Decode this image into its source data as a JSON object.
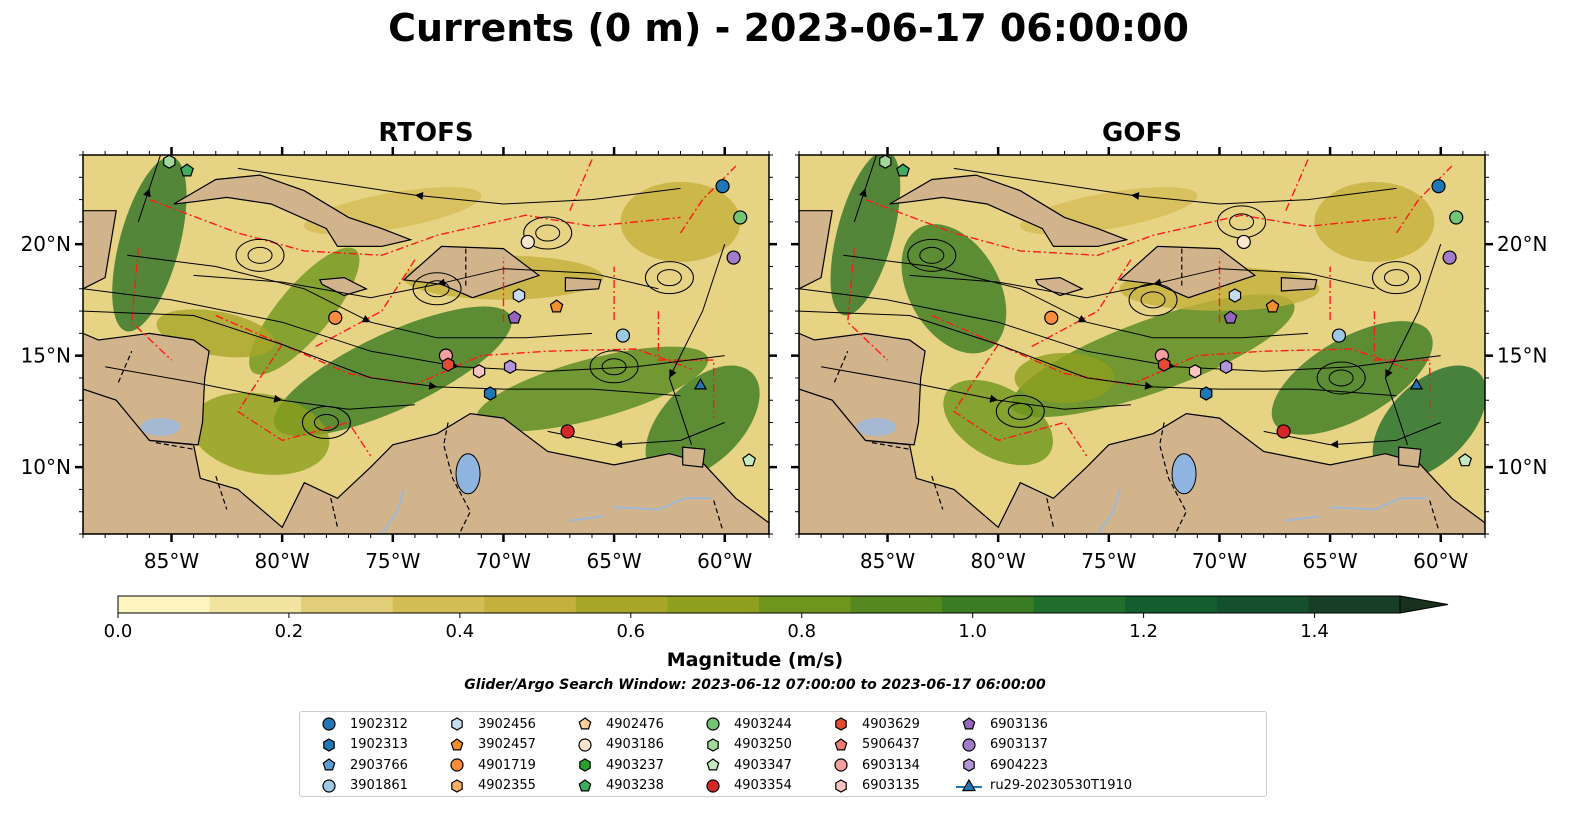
{
  "title": "Currents (0 m) - 2023-06-17 06:00:00",
  "panels": [
    {
      "title": "RTOFS"
    },
    {
      "title": "GOFS"
    }
  ],
  "axes": {
    "lon_ticks": [
      "85°W",
      "80°W",
      "75°W",
      "70°W",
      "65°W",
      "60°W"
    ],
    "lat_ticks": [
      "20°N",
      "15°N",
      "10°N"
    ],
    "lon_range": [
      -89,
      -58
    ],
    "lat_range": [
      7,
      24
    ]
  },
  "colorbar": {
    "label": "Magnitude (m/s)",
    "ticks": [
      "0.0",
      "0.2",
      "0.4",
      "0.6",
      "0.8",
      "1.0",
      "1.2",
      "1.4"
    ],
    "range": [
      0,
      1.5
    ],
    "extend": "max",
    "colors": [
      "#fdf5c0",
      "#f3e3a0",
      "#e2ce78",
      "#d4bd55",
      "#c4b03c",
      "#a8a628",
      "#8fa01e",
      "#6e961c",
      "#54891f",
      "#3a7c22",
      "#1f6e2c",
      "#125e2f",
      "#14502e",
      "#163f26",
      "#18301e"
    ]
  },
  "search_window": "Glider/Argo Search Window: 2023-06-12 07:00:00 to 2023-06-17 06:00:00",
  "legend": [
    {
      "label": "1902312",
      "marker": "circle",
      "color": "#1f77b4"
    },
    {
      "label": "1902313",
      "marker": "hexagon",
      "color": "#1f77b4"
    },
    {
      "label": "2903766",
      "marker": "pentagon",
      "color": "#5b9bd5"
    },
    {
      "label": "3901861",
      "marker": "circle",
      "color": "#9ecae1"
    },
    {
      "label": "3902456",
      "marker": "hexagon",
      "color": "#c6dbef"
    },
    {
      "label": "3902457",
      "marker": "pentagon",
      "color": "#f28e2b"
    },
    {
      "label": "4901719",
      "marker": "circle",
      "color": "#fd8d3c"
    },
    {
      "label": "4902355",
      "marker": "hexagon",
      "color": "#fdae6b"
    },
    {
      "label": "4902476",
      "marker": "pentagon",
      "color": "#fdd0a2"
    },
    {
      "label": "4903186",
      "marker": "circle",
      "color": "#fee6ce"
    },
    {
      "label": "4903237",
      "marker": "hexagon",
      "color": "#2ca02c"
    },
    {
      "label": "4903238",
      "marker": "pentagon",
      "color": "#41ab5d"
    },
    {
      "label": "4903244",
      "marker": "circle",
      "color": "#74c476"
    },
    {
      "label": "4903250",
      "marker": "hexagon",
      "color": "#a1d99b"
    },
    {
      "label": "4903347",
      "marker": "pentagon",
      "color": "#c7e9c0"
    },
    {
      "label": "4903354",
      "marker": "circle",
      "color": "#d62728"
    },
    {
      "label": "4903629",
      "marker": "hexagon",
      "color": "#e34a33"
    },
    {
      "label": "5906437",
      "marker": "pentagon",
      "color": "#f07b72"
    },
    {
      "label": "6903134",
      "marker": "circle",
      "color": "#f4a0a0"
    },
    {
      "label": "6903135",
      "marker": "hexagon",
      "color": "#fcc5c0"
    },
    {
      "label": "6903136",
      "marker": "pentagon",
      "color": "#9467bd"
    },
    {
      "label": "6903137",
      "marker": "circle",
      "color": "#a17cc9"
    },
    {
      "label": "6904223",
      "marker": "hexagon",
      "color": "#b294d9"
    },
    {
      "label": "ru29-20230530T1910",
      "marker": "triangle-line",
      "color": "#1f77b4"
    }
  ],
  "platforms": [
    {
      "id": "1902312",
      "lon": -60.1,
      "lat": 22.6
    },
    {
      "id": "4903244",
      "lon": -59.3,
      "lat": 21.2
    },
    {
      "id": "4903186",
      "lon": -68.9,
      "lat": 20.1
    },
    {
      "id": "6903137",
      "lon": -59.6,
      "lat": 19.4
    },
    {
      "id": "3902456",
      "lon": -69.3,
      "lat": 17.7
    },
    {
      "id": "3902457",
      "lon": -67.6,
      "lat": 17.2
    },
    {
      "id": "4901719",
      "lon": -77.6,
      "lat": 16.7
    },
    {
      "id": "6903136",
      "lon": -69.5,
      "lat": 16.7
    },
    {
      "id": "3901861",
      "lon": -64.6,
      "lat": 15.9
    },
    {
      "id": "6903134",
      "lon": -72.6,
      "lat": 15.0
    },
    {
      "id": "4903629",
      "lon": -72.5,
      "lat": 14.6
    },
    {
      "id": "6903135",
      "lon": -71.1,
      "lat": 14.3
    },
    {
      "id": "6904223",
      "lon": -69.7,
      "lat": 14.5
    },
    {
      "id": "ru29-20230530T1910",
      "lon": -61.1,
      "lat": 13.7
    },
    {
      "id": "1902313",
      "lon": -70.6,
      "lat": 13.3
    },
    {
      "id": "4903354",
      "lon": -67.1,
      "lat": 11.6
    },
    {
      "id": "4903347",
      "lon": -58.9,
      "lat": 10.3
    },
    {
      "id": "4903250",
      "lon": -85.1,
      "lat": 23.7
    },
    {
      "id": "4903238",
      "lon": -84.3,
      "lat": 23.3
    }
  ]
}
